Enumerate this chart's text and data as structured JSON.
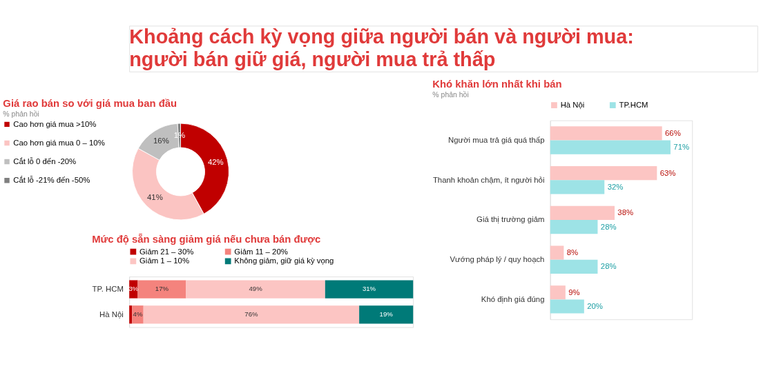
{
  "chart_data": [
    {
      "type": "other",
      "title": "Khoảng cách kỳ vọng giữa người bán và người mua: người bán giữ giá, người mua trả thấp"
    },
    {
      "type": "donut",
      "title": "Giá rao bán so với giá mua ban đầu",
      "subtitle": "% phản hồi",
      "categories": [
        "Cao hơn giá mua >10%",
        "Cao hơn giá mua 0 – 10%",
        "Cắt lỗ 0 đến -20%",
        "Cắt lỗ -21% đến -50%"
      ],
      "values": [
        42,
        41,
        16,
        1
      ],
      "colors": [
        "#c00000",
        "#fbc4c2",
        "#bfbfbf",
        "#7f7f7f"
      ],
      "value_labels": [
        "42%",
        "41%",
        "16%",
        "1%"
      ],
      "legend": "left"
    },
    {
      "type": "bar",
      "stacked": true,
      "orientation": "horizontal",
      "title": "Mức độ sẵn sàng giảm giá nếu chưa bán được",
      "categories": [
        "TP. HCM",
        "Hà Nội"
      ],
      "legend": "top",
      "tick_labels": "y",
      "series": [
        {
          "name": "Giảm 21 – 30%",
          "color": "#c00000",
          "values": [
            3,
            1
          ],
          "value_labels": [
            "3%",
            null
          ]
        },
        {
          "name": "Giảm 11 – 20%",
          "color": "#f4837d",
          "values": [
            17,
            4
          ],
          "value_labels": [
            "17%",
            "4%"
          ]
        },
        {
          "name": "Giảm 1 – 10%",
          "color": "#fcc5c3",
          "values": [
            49,
            76
          ],
          "value_labels": [
            "49%",
            "76%"
          ]
        },
        {
          "name": "Không giảm, giữ giá kỳ vọng",
          "color": "#007a78",
          "values": [
            31,
            19
          ],
          "value_labels": [
            "31%",
            "19%"
          ]
        }
      ]
    },
    {
      "type": "bar",
      "orientation": "horizontal",
      "title": "Khó khăn lớn nhất khi bán",
      "subtitle": "% phản hồi",
      "categories": [
        "Người mua trả giá quá thấp",
        "Thanh khoản chậm, ít người hỏi",
        "Giá thị trường giảm",
        "Vướng pháp lý / quy hoạch",
        "Khó định giá đúng"
      ],
      "legend": "top left",
      "tick_labels": "y",
      "series": [
        {
          "name": "Hà Nội",
          "color": "#fcc5c3",
          "values": [
            66,
            63,
            38,
            8,
            9
          ],
          "value_labels": [
            "66%",
            "63%",
            "38%",
            "8%",
            "9%"
          ]
        },
        {
          "name": "TP.HCM",
          "color": "#9de3e6",
          "values": [
            71,
            32,
            28,
            28,
            20
          ],
          "value_labels": [
            "71%",
            "32%",
            "28%",
            "28%",
            "20%"
          ]
        }
      ]
    }
  ]
}
